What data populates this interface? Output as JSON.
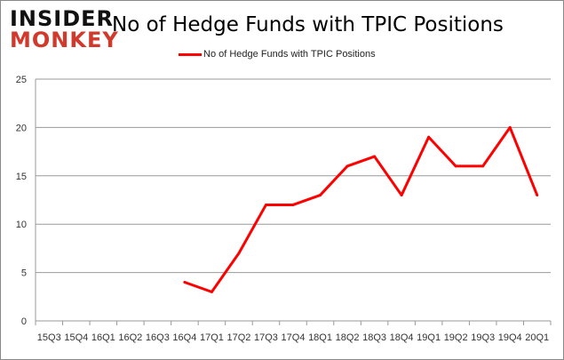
{
  "logo": {
    "line1": "INSIDER",
    "line2": "MONKEY"
  },
  "chart_data": {
    "type": "line",
    "title": "No of Hedge Funds with TPIC Positions",
    "xlabel": "",
    "ylabel": "",
    "categories": [
      "15Q3",
      "15Q4",
      "16Q1",
      "16Q2",
      "16Q3",
      "16Q4",
      "17Q1",
      "17Q2",
      "17Q3",
      "17Q4",
      "18Q1",
      "18Q2",
      "18Q3",
      "18Q4",
      "19Q1",
      "19Q2",
      "19Q3",
      "19Q4",
      "20Q1"
    ],
    "series": [
      {
        "name": "No of Hedge Funds with TPIC Positions",
        "color": "#ff0000",
        "values": [
          null,
          null,
          null,
          null,
          null,
          4,
          3,
          7,
          12,
          12,
          13,
          16,
          17,
          13,
          19,
          16,
          16,
          20,
          13
        ]
      }
    ],
    "ylim": [
      0,
      25
    ],
    "yticks": [
      0,
      5,
      10,
      15,
      20,
      25
    ],
    "grid": true,
    "legend": "top"
  }
}
